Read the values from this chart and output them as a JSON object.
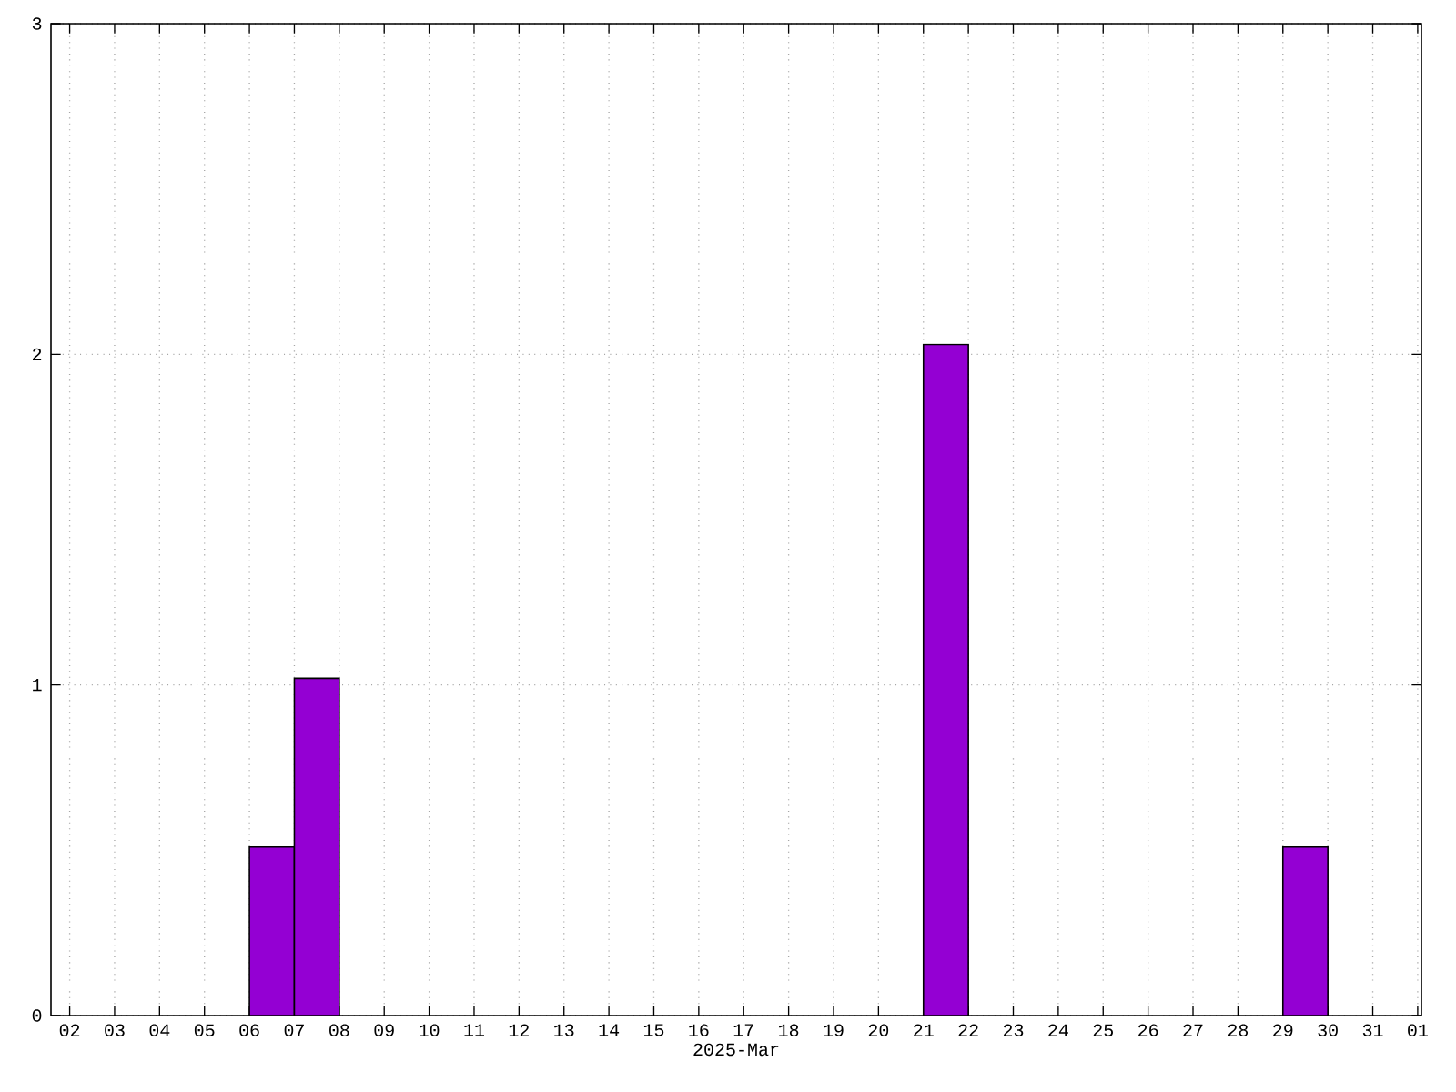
{
  "chart_data": {
    "type": "bar",
    "xlabel": "2025-Mar",
    "color": "#9400d3",
    "x": [
      "2025-03-06T12:00",
      "2025-03-07T12:00",
      "2025-03-21T12:00",
      "2025-03-29T12:00"
    ],
    "values": [
      0.51,
      1.02,
      2.03,
      0.51
    ],
    "xlim": [
      "2025-03-01T14:00",
      "2025-04-01T02:00"
    ],
    "xticks": [
      {
        "value": "2025-03-02",
        "label": "02"
      },
      {
        "value": "2025-03-03",
        "label": "03"
      },
      {
        "value": "2025-03-04",
        "label": "04"
      },
      {
        "value": "2025-03-05",
        "label": "05"
      },
      {
        "value": "2025-03-06",
        "label": "06"
      },
      {
        "value": "2025-03-07",
        "label": "07"
      },
      {
        "value": "2025-03-08",
        "label": "08"
      },
      {
        "value": "2025-03-09",
        "label": "09"
      },
      {
        "value": "2025-03-10",
        "label": "10"
      },
      {
        "value": "2025-03-11",
        "label": "11"
      },
      {
        "value": "2025-03-12",
        "label": "12"
      },
      {
        "value": "2025-03-13",
        "label": "13"
      },
      {
        "value": "2025-03-14",
        "label": "14"
      },
      {
        "value": "2025-03-15",
        "label": "15"
      },
      {
        "value": "2025-03-16",
        "label": "16"
      },
      {
        "value": "2025-03-17",
        "label": "17"
      },
      {
        "value": "2025-03-18",
        "label": "18"
      },
      {
        "value": "2025-03-19",
        "label": "19"
      },
      {
        "value": "2025-03-20",
        "label": "20"
      },
      {
        "value": "2025-03-21",
        "label": "21"
      },
      {
        "value": "2025-03-22",
        "label": "22"
      },
      {
        "value": "2025-03-23",
        "label": "23"
      },
      {
        "value": "2025-03-24",
        "label": "24"
      },
      {
        "value": "2025-03-25",
        "label": "25"
      },
      {
        "value": "2025-03-26",
        "label": "26"
      },
      {
        "value": "2025-03-27",
        "label": "27"
      },
      {
        "value": "2025-03-28",
        "label": "28"
      },
      {
        "value": "2025-03-29",
        "label": "29"
      },
      {
        "value": "2025-03-30",
        "label": "30"
      },
      {
        "value": "2025-03-31",
        "label": "31"
      },
      {
        "value": "2025-04-01",
        "label": "01"
      }
    ],
    "ylim": [
      0,
      3
    ],
    "yticks": [
      0,
      1,
      2,
      3
    ],
    "grid": true
  }
}
